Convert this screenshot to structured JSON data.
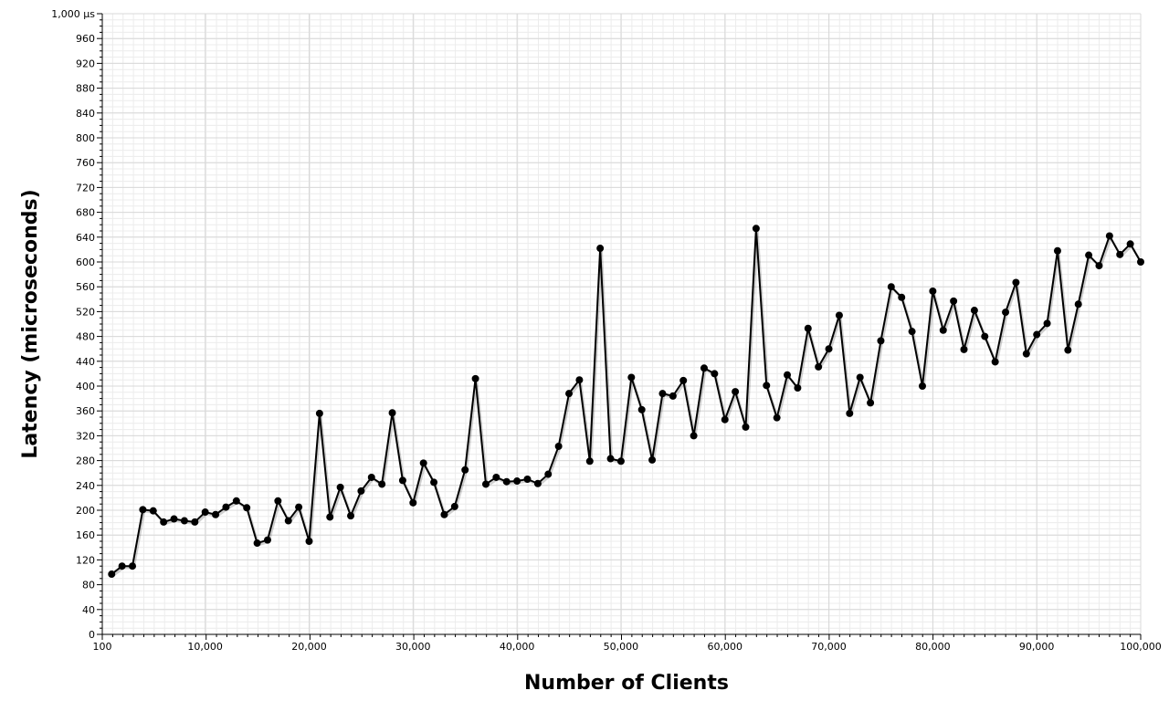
{
  "chart_data": {
    "type": "line",
    "title": "",
    "xlabel": "Number of Clients",
    "ylabel": "Latency (microseconds)",
    "xlim": [
      100,
      100000
    ],
    "ylim": [
      0,
      1000
    ],
    "grid": true,
    "legend": "none",
    "x_ticks": [
      {
        "value": 100,
        "label": "100"
      },
      {
        "value": 10000,
        "label": "10,000"
      },
      {
        "value": 20000,
        "label": "20,000"
      },
      {
        "value": 30000,
        "label": "30,000"
      },
      {
        "value": 40000,
        "label": "40,000"
      },
      {
        "value": 50000,
        "label": "50,000"
      },
      {
        "value": 60000,
        "label": "60,000"
      },
      {
        "value": 70000,
        "label": "70,000"
      },
      {
        "value": 80000,
        "label": "80,000"
      },
      {
        "value": 90000,
        "label": "90,000"
      },
      {
        "value": 100000,
        "label": "100,000"
      }
    ],
    "y_ticks": [
      {
        "value": 0,
        "label": "0"
      },
      {
        "value": 40,
        "label": "40"
      },
      {
        "value": 80,
        "label": "80"
      },
      {
        "value": 120,
        "label": "120"
      },
      {
        "value": 160,
        "label": "160"
      },
      {
        "value": 200,
        "label": "200"
      },
      {
        "value": 240,
        "label": "240"
      },
      {
        "value": 280,
        "label": "280"
      },
      {
        "value": 320,
        "label": "320"
      },
      {
        "value": 360,
        "label": "360"
      },
      {
        "value": 400,
        "label": "400"
      },
      {
        "value": 440,
        "label": "440"
      },
      {
        "value": 480,
        "label": "480"
      },
      {
        "value": 520,
        "label": "520"
      },
      {
        "value": 560,
        "label": "560"
      },
      {
        "value": 600,
        "label": "600"
      },
      {
        "value": 640,
        "label": "640"
      },
      {
        "value": 680,
        "label": "680"
      },
      {
        "value": 720,
        "label": "720"
      },
      {
        "value": 760,
        "label": "760"
      },
      {
        "value": 800,
        "label": "800"
      },
      {
        "value": 840,
        "label": "840"
      },
      {
        "value": 880,
        "label": "880"
      },
      {
        "value": 920,
        "label": "920"
      },
      {
        "value": 960,
        "label": "960"
      },
      {
        "value": 1000,
        "label": "1,000 µs"
      }
    ],
    "series": [
      {
        "color": "#000000",
        "x": [
          1000,
          2000,
          3000,
          4000,
          5000,
          6000,
          7000,
          8000,
          9000,
          10000,
          11000,
          12000,
          13000,
          14000,
          15000,
          16000,
          17000,
          18000,
          19000,
          20000,
          21000,
          22000,
          23000,
          24000,
          25000,
          26000,
          27000,
          28000,
          29000,
          30000,
          31000,
          32000,
          33000,
          34000,
          35000,
          36000,
          37000,
          38000,
          39000,
          40000,
          41000,
          42000,
          43000,
          44000,
          45000,
          46000,
          47000,
          48000,
          49000,
          50000,
          51000,
          52000,
          53000,
          54000,
          55000,
          56000,
          57000,
          58000,
          59000,
          60000,
          61000,
          62000,
          63000,
          64000,
          65000,
          66000,
          67000,
          68000,
          69000,
          70000,
          71000,
          72000,
          73000,
          74000,
          75000,
          76000,
          77000,
          78000,
          79000,
          80000,
          81000,
          82000,
          83000,
          84000,
          85000,
          86000,
          87000,
          88000,
          89000,
          90000,
          91000,
          92000,
          93000,
          94000,
          95000,
          96000,
          97000,
          98000,
          99000,
          100000
        ],
        "y": [
          97,
          110,
          110,
          201,
          199,
          181,
          186,
          183,
          181,
          197,
          193,
          205,
          215,
          204,
          147,
          152,
          215,
          183,
          205,
          150,
          356,
          189,
          237,
          191,
          231,
          253,
          242,
          357,
          248,
          212,
          276,
          245,
          193,
          206,
          265,
          412,
          242,
          253,
          246,
          247,
          250,
          243,
          258,
          303,
          388,
          410,
          279,
          622,
          283,
          279,
          414,
          362,
          281,
          388,
          384,
          409,
          320,
          429,
          420,
          346,
          391,
          334,
          654,
          401,
          349,
          418,
          397,
          493,
          431,
          460,
          514,
          356,
          414,
          373,
          473,
          560,
          543,
          488,
          400,
          553,
          490,
          537,
          459,
          522,
          480,
          439,
          519,
          567,
          452,
          483,
          501,
          618,
          458,
          532,
          611,
          594,
          642,
          612,
          629,
          600
        ]
      }
    ]
  }
}
